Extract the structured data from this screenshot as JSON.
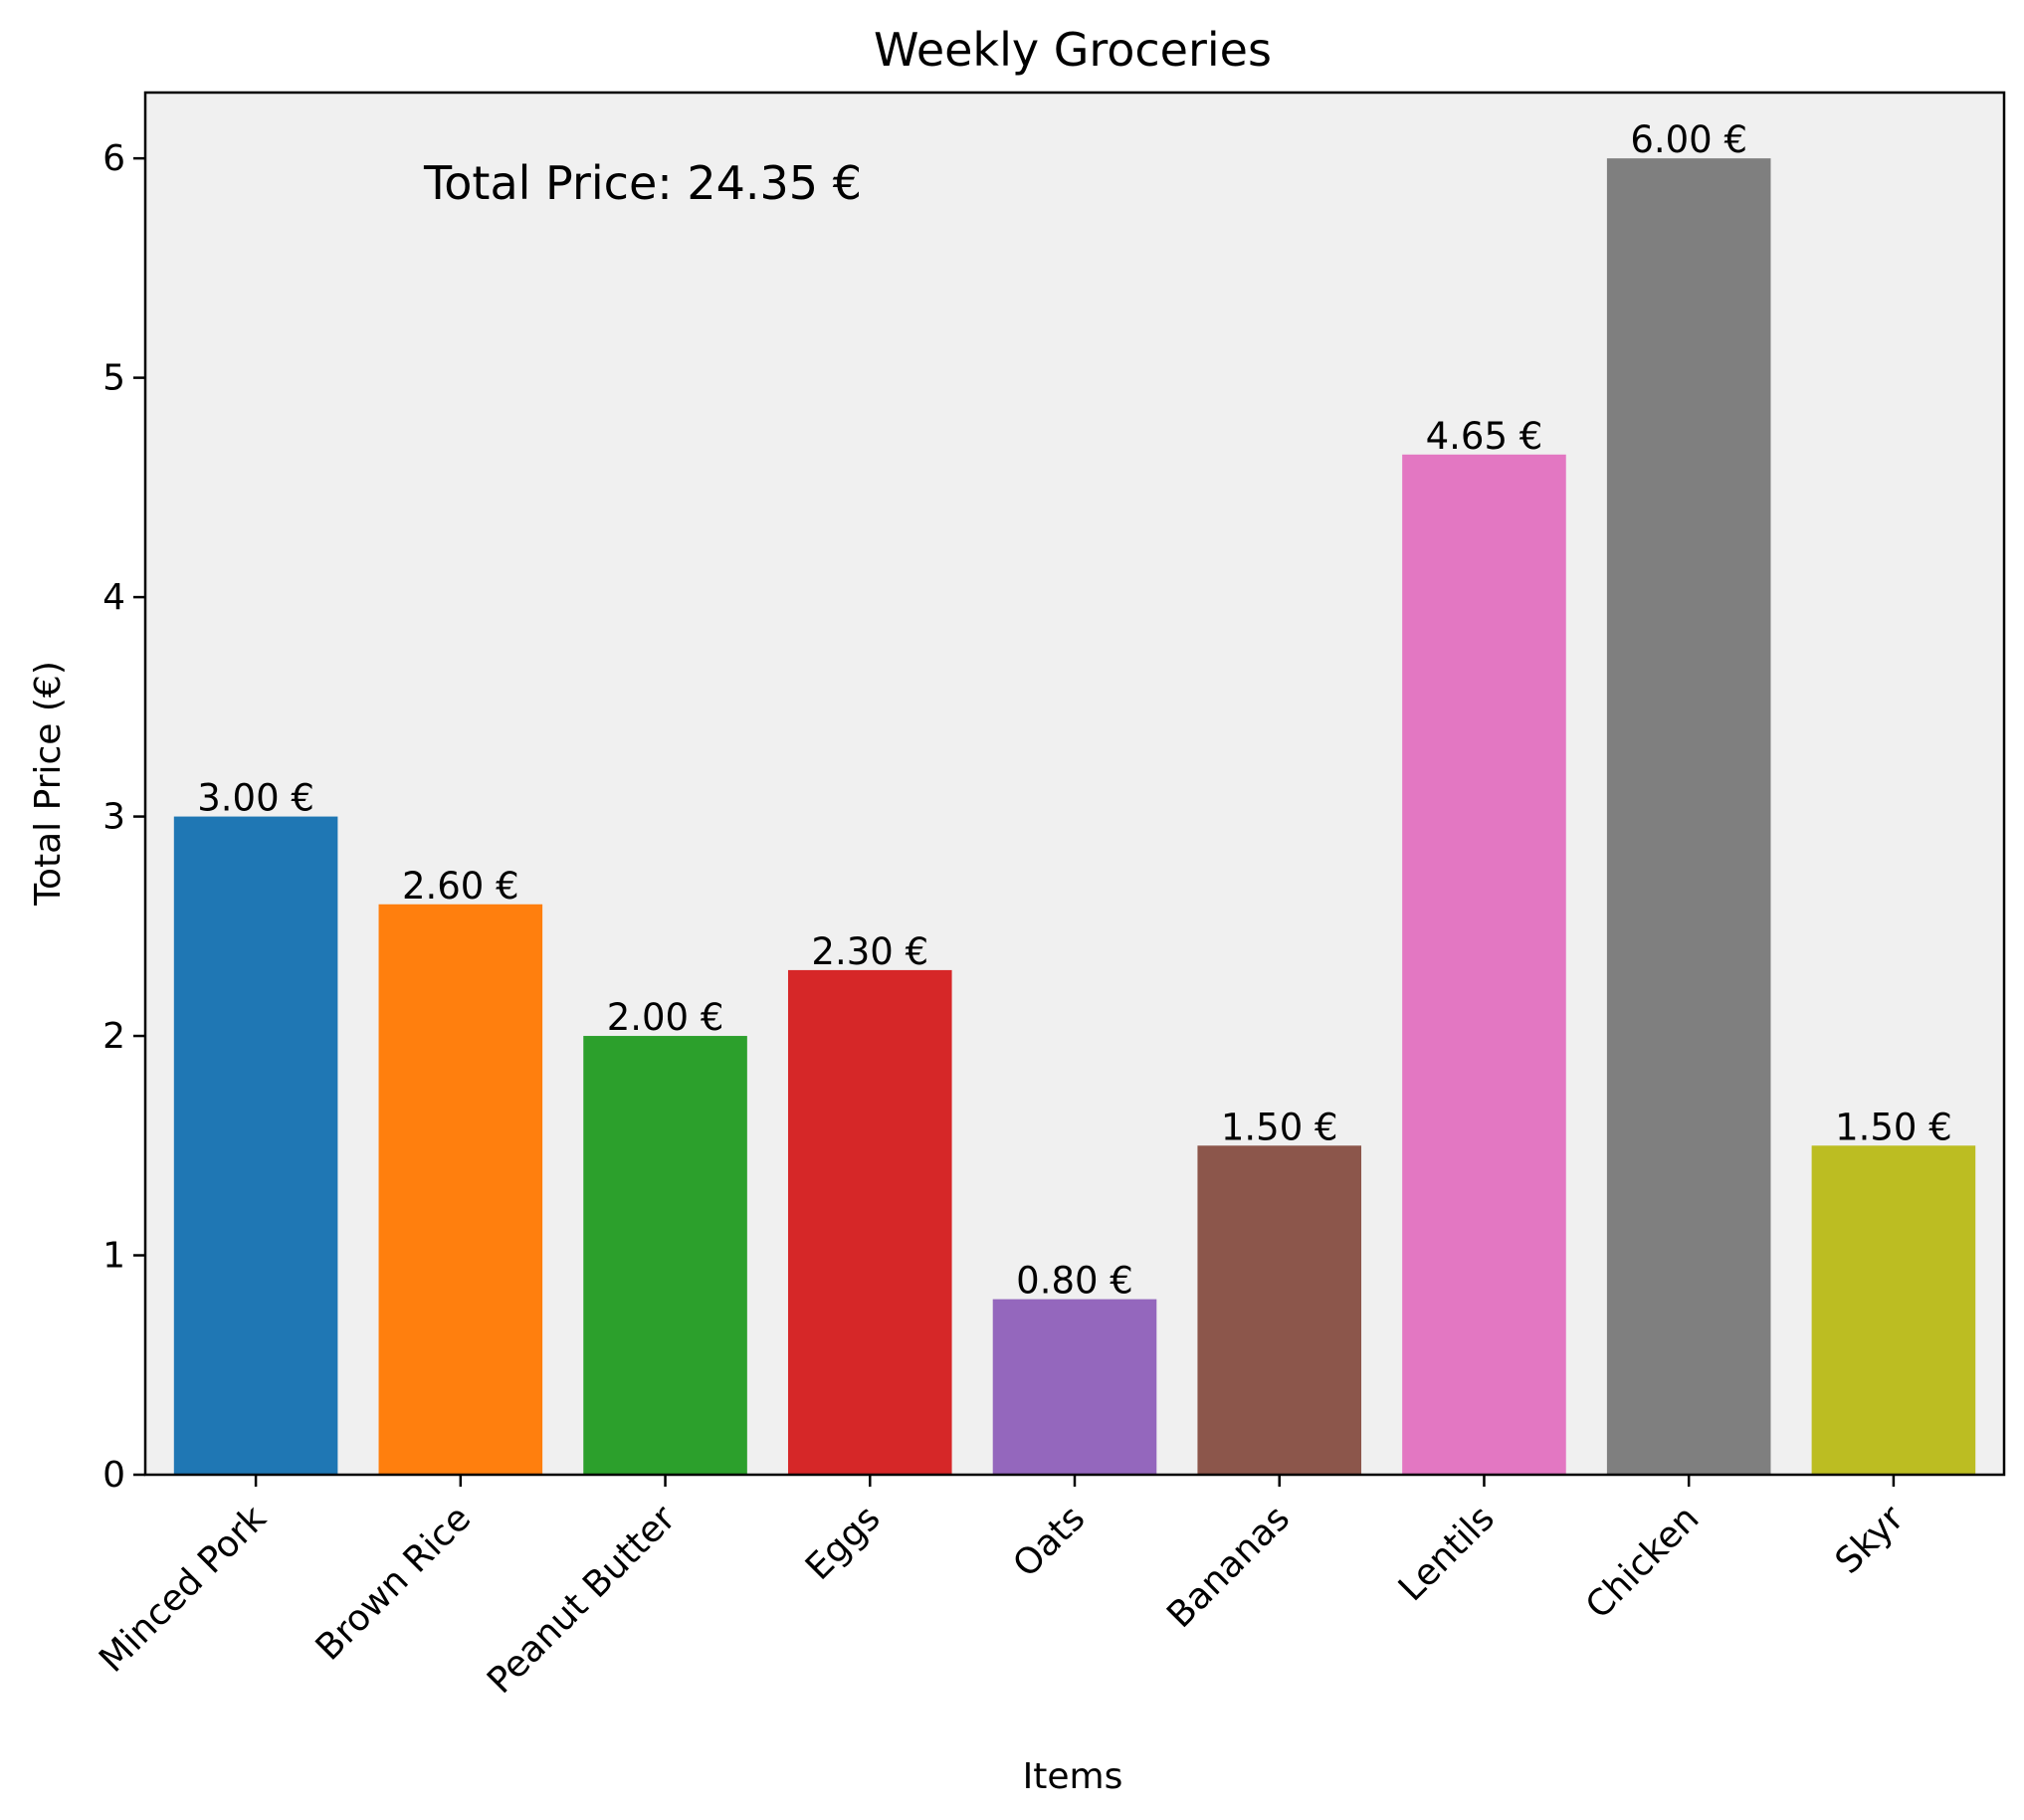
{
  "chart_data": {
    "type": "bar",
    "title": "Weekly Groceries",
    "xlabel": "Items",
    "ylabel": "Total Price (€)",
    "categories": [
      "Minced Pork",
      "Brown Rice",
      "Peanut Butter",
      "Eggs",
      "Oats",
      "Bananas",
      "Lentils",
      "Chicken",
      "Skyr"
    ],
    "values": [
      3.0,
      2.6,
      2.0,
      2.3,
      0.8,
      1.5,
      4.65,
      6.0,
      1.5
    ],
    "bar_labels": [
      "3.00 €",
      "2.60 €",
      "2.00 €",
      "2.30 €",
      "0.80 €",
      "1.50 €",
      "4.65 €",
      "6.00 €",
      "1.50 €"
    ],
    "colors": [
      "#1f77b4",
      "#ff7f0e",
      "#2ca02c",
      "#d62728",
      "#9467bd",
      "#8c564b",
      "#e377c2",
      "#7f7f7f",
      "#bcbd22"
    ],
    "annotation": "Total Price: 24.35 €",
    "ylim": [
      0,
      6.3
    ],
    "yticks": [
      0,
      1,
      2,
      3,
      4,
      5,
      6
    ],
    "plot_background": "#f0f0f0",
    "grid": false,
    "x_tick_rotation": 45
  }
}
